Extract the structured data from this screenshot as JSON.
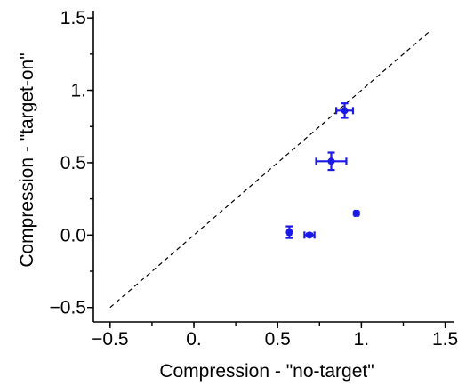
{
  "chart_data": {
    "type": "scatter",
    "title": "",
    "xlabel": "Compression - \"no-target\"",
    "ylabel": "Compression - \"target-on\"",
    "xlim": [
      -0.6,
      1.55
    ],
    "ylim": [
      -0.6,
      1.55
    ],
    "x_ticks": [
      -0.5,
      0,
      0.5,
      1,
      1.5
    ],
    "x_tick_labels": [
      "−0.5",
      "0.",
      "0.5",
      "1.",
      "1.5"
    ],
    "y_ticks": [
      -0.5,
      0,
      0.5,
      1,
      1.5
    ],
    "y_tick_labels": [
      "−0.5",
      "0.0",
      "0.5",
      "1.",
      "1.5"
    ],
    "reference_line": {
      "style": "dashed",
      "from": [
        -0.5,
        -0.5
      ],
      "to": [
        1.4,
        1.4
      ]
    },
    "grid": false,
    "marker_color": "#1a1ae6",
    "points": [
      {
        "x": 0.9,
        "y": 0.86,
        "xerr": 0.05,
        "yerr": 0.05
      },
      {
        "x": 0.82,
        "y": 0.51,
        "xerr": 0.09,
        "yerr": 0.06
      },
      {
        "x": 0.57,
        "y": 0.02,
        "xerr": 0.01,
        "yerr": 0.04
      },
      {
        "x": 0.69,
        "y": 0.0,
        "xerr": 0.03,
        "yerr": 0.01
      },
      {
        "x": 0.97,
        "y": 0.15,
        "xerr": 0.01,
        "yerr": 0.01
      }
    ]
  }
}
